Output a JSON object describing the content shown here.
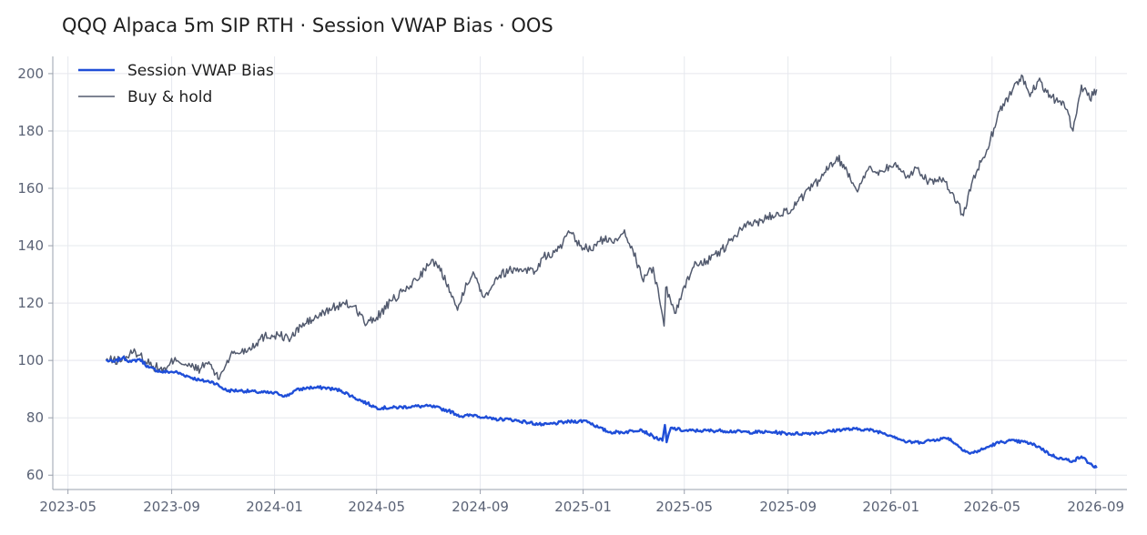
{
  "colors": {
    "strategy": "#1f4ed8",
    "buy_hold": "#525a6e",
    "grid": "#e6e8ee",
    "axis": "#9aa0ac",
    "tick_text": "#5a6275"
  },
  "chart_data": {
    "type": "line",
    "title": "QQQ Alpaca 5m SIP RTH · Session VWAP Bias · OOS",
    "xlabel": "",
    "ylabel": "",
    "x_type": "date",
    "xlim": [
      "2023-04-13",
      "2026-10-08"
    ],
    "ylim": [
      55,
      206
    ],
    "grid": true,
    "legend_position": "upper-left",
    "x_ticks": [
      "2023-05",
      "2023-09",
      "2024-01",
      "2024-05",
      "2024-09",
      "2025-01",
      "2025-05",
      "2025-09",
      "2026-01",
      "2026-05",
      "2026-09"
    ],
    "y_ticks": [
      60,
      80,
      100,
      120,
      140,
      160,
      180,
      200
    ],
    "series": [
      {
        "name": "Session VWAP Bias",
        "color": "#1f4ed8",
        "points": [
          [
            "2023-06-15",
            100
          ],
          [
            "2023-06-25",
            99.5
          ],
          [
            "2023-07-05",
            101
          ],
          [
            "2023-07-15",
            99.5
          ],
          [
            "2023-07-25",
            100.5
          ],
          [
            "2023-08-05",
            97.5
          ],
          [
            "2023-08-20",
            96
          ],
          [
            "2023-09-05",
            96
          ],
          [
            "2023-09-20",
            94.5
          ],
          [
            "2023-10-05",
            93
          ],
          [
            "2023-10-20",
            92.5
          ],
          [
            "2023-11-05",
            89.5
          ],
          [
            "2023-11-20",
            89.5
          ],
          [
            "2023-12-10",
            89
          ],
          [
            "2024-01-05",
            88.5
          ],
          [
            "2024-01-15",
            87.5
          ],
          [
            "2024-01-25",
            89.5
          ],
          [
            "2024-02-10",
            90.5
          ],
          [
            "2024-03-01",
            90.5
          ],
          [
            "2024-03-20",
            89.5
          ],
          [
            "2024-04-05",
            87
          ],
          [
            "2024-04-20",
            85
          ],
          [
            "2024-05-01",
            83.5
          ],
          [
            "2024-05-20",
            83.5
          ],
          [
            "2024-06-15",
            84
          ],
          [
            "2024-07-05",
            84
          ],
          [
            "2024-07-25",
            82.5
          ],
          [
            "2024-08-10",
            80.5
          ],
          [
            "2024-08-25",
            81
          ],
          [
            "2024-09-15",
            79.5
          ],
          [
            "2024-10-05",
            79.5
          ],
          [
            "2024-10-25",
            78.5
          ],
          [
            "2024-11-15",
            77.5
          ],
          [
            "2024-12-10",
            78.5
          ],
          [
            "2025-01-05",
            79
          ],
          [
            "2025-01-20",
            76.5
          ],
          [
            "2025-02-01",
            75
          ],
          [
            "2025-02-20",
            75
          ],
          [
            "2025-03-10",
            76
          ],
          [
            "2025-03-25",
            73.5
          ],
          [
            "2025-04-05",
            72
          ],
          [
            "2025-04-08",
            77.5
          ],
          [
            "2025-04-10",
            71.5
          ],
          [
            "2025-04-15",
            76.5
          ],
          [
            "2025-05-01",
            75.5
          ],
          [
            "2025-05-20",
            75.5
          ],
          [
            "2025-06-15",
            75.5
          ],
          [
            "2025-07-15",
            75
          ],
          [
            "2025-08-15",
            75
          ],
          [
            "2025-09-01",
            74.5
          ],
          [
            "2025-09-20",
            74.5
          ],
          [
            "2025-10-15",
            75
          ],
          [
            "2025-11-05",
            76
          ],
          [
            "2025-12-01",
            76
          ],
          [
            "2025-12-20",
            75
          ],
          [
            "2026-01-05",
            73.5
          ],
          [
            "2026-01-20",
            71.5
          ],
          [
            "2026-02-05",
            71.5
          ],
          [
            "2026-02-25",
            72.5
          ],
          [
            "2026-03-10",
            73
          ],
          [
            "2026-03-25",
            69.5
          ],
          [
            "2026-04-05",
            67.5
          ],
          [
            "2026-04-20",
            69
          ],
          [
            "2026-05-05",
            71
          ],
          [
            "2026-05-20",
            72
          ],
          [
            "2026-06-10",
            71.5
          ],
          [
            "2026-06-25",
            70
          ],
          [
            "2026-07-10",
            67
          ],
          [
            "2026-07-25",
            65.5
          ],
          [
            "2026-08-05",
            65
          ],
          [
            "2026-08-15",
            66.5
          ],
          [
            "2026-08-25",
            64
          ],
          [
            "2026-09-02",
            62.5
          ]
        ]
      },
      {
        "name": "Buy & hold",
        "color": "#525a6e",
        "points": [
          [
            "2023-06-15",
            100
          ],
          [
            "2023-07-01",
            100
          ],
          [
            "2023-07-20",
            103
          ],
          [
            "2023-08-10",
            98
          ],
          [
            "2023-08-25",
            96.5
          ],
          [
            "2023-09-05",
            101
          ],
          [
            "2023-09-20",
            98
          ],
          [
            "2023-10-05",
            97
          ],
          [
            "2023-10-15",
            99.5
          ],
          [
            "2023-10-26",
            93.5
          ],
          [
            "2023-11-10",
            102
          ],
          [
            "2023-12-01",
            104
          ],
          [
            "2023-12-20",
            108.5
          ],
          [
            "2024-01-05",
            109
          ],
          [
            "2024-01-20",
            107.5
          ],
          [
            "2024-02-01",
            112
          ],
          [
            "2024-02-20",
            115
          ],
          [
            "2024-03-10",
            118.5
          ],
          [
            "2024-03-25",
            119.5
          ],
          [
            "2024-04-05",
            119
          ],
          [
            "2024-04-19",
            112.5
          ],
          [
            "2024-05-01",
            115
          ],
          [
            "2024-05-20",
            121
          ],
          [
            "2024-06-10",
            126
          ],
          [
            "2024-07-01",
            133
          ],
          [
            "2024-07-10",
            134.5
          ],
          [
            "2024-07-25",
            126.5
          ],
          [
            "2024-08-05",
            117.5
          ],
          [
            "2024-08-15",
            127
          ],
          [
            "2024-08-25",
            130
          ],
          [
            "2024-09-06",
            122
          ],
          [
            "2024-09-20",
            129
          ],
          [
            "2024-10-05",
            131.5
          ],
          [
            "2024-10-25",
            132
          ],
          [
            "2024-11-05",
            131
          ],
          [
            "2024-11-15",
            136
          ],
          [
            "2024-12-01",
            138
          ],
          [
            "2024-12-16",
            144.5
          ],
          [
            "2024-12-28",
            140
          ],
          [
            "2025-01-10",
            138.5
          ],
          [
            "2025-01-25",
            142.5
          ],
          [
            "2025-02-05",
            141
          ],
          [
            "2025-02-19",
            145.5
          ],
          [
            "2025-03-01",
            138.5
          ],
          [
            "2025-03-12",
            128.5
          ],
          [
            "2025-03-25",
            132.5
          ],
          [
            "2025-04-04",
            117.5
          ],
          [
            "2025-04-07",
            112
          ],
          [
            "2025-04-09",
            125.5
          ],
          [
            "2025-04-21",
            116.5
          ],
          [
            "2025-05-01",
            126
          ],
          [
            "2025-05-15",
            134
          ],
          [
            "2025-06-01",
            135
          ],
          [
            "2025-06-20",
            140
          ],
          [
            "2025-07-10",
            146.5
          ],
          [
            "2025-08-01",
            149
          ],
          [
            "2025-08-20",
            151.5
          ],
          [
            "2025-09-05",
            152.5
          ],
          [
            "2025-09-20",
            157.5
          ],
          [
            "2025-10-10",
            163.5
          ],
          [
            "2025-10-29",
            171
          ],
          [
            "2025-11-10",
            166
          ],
          [
            "2025-11-21",
            159.5
          ],
          [
            "2025-12-05",
            166.5
          ],
          [
            "2025-12-20",
            166
          ],
          [
            "2026-01-05",
            168.5
          ],
          [
            "2026-01-20",
            164
          ],
          [
            "2026-02-01",
            167
          ],
          [
            "2026-02-15",
            162.5
          ],
          [
            "2026-03-01",
            163
          ],
          [
            "2026-03-15",
            158.5
          ],
          [
            "2026-03-28",
            150.5
          ],
          [
            "2026-04-08",
            163
          ],
          [
            "2026-04-25",
            173.5
          ],
          [
            "2026-05-10",
            187
          ],
          [
            "2026-05-25",
            194
          ],
          [
            "2026-06-05",
            199.5
          ],
          [
            "2026-06-15",
            192
          ],
          [
            "2026-06-25",
            197.5
          ],
          [
            "2026-07-10",
            191.5
          ],
          [
            "2026-07-25",
            190
          ],
          [
            "2026-08-05",
            180
          ],
          [
            "2026-08-15",
            196
          ],
          [
            "2026-08-25",
            191
          ],
          [
            "2026-09-02",
            194.5
          ]
        ]
      }
    ]
  }
}
